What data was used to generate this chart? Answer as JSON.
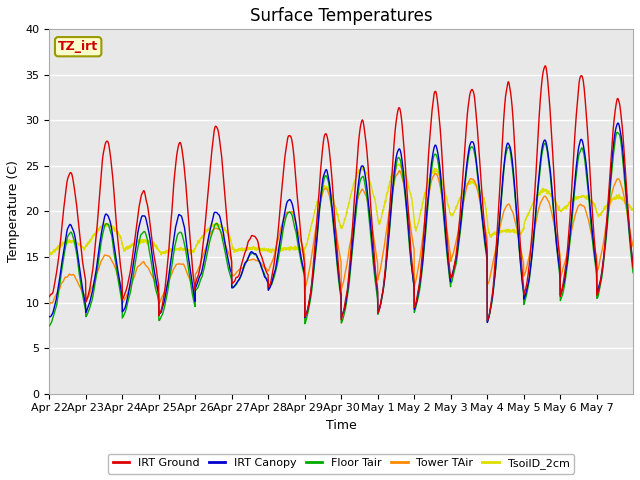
{
  "title": "Surface Temperatures",
  "xlabel": "Time",
  "ylabel": "Temperature (C)",
  "ylim": [
    0,
    40
  ],
  "x_tick_labels": [
    "Apr 22",
    "Apr 23",
    "Apr 24",
    "Apr 25",
    "Apr 26",
    "Apr 27",
    "Apr 28",
    "Apr 29",
    "Apr 30",
    "May 1",
    "May 2",
    "May 3",
    "May 4",
    "May 5",
    "May 6",
    "May 7"
  ],
  "annotation_text": "TZ_irt",
  "annotation_color": "#cc0000",
  "annotation_bg": "#ffffcc",
  "annotation_border": "#999900",
  "series_colors": [
    "#dd0000",
    "#0000cc",
    "#00aa00",
    "#ff8800",
    "#dddd00"
  ],
  "series_labels": [
    "IRT Ground",
    "IRT Canopy",
    "Floor Tair",
    "Tower TAir",
    "TsoilD_2cm"
  ],
  "plot_bg_color": "#e8e8e8",
  "grid_color": "#ffffff",
  "title_fontsize": 12,
  "axis_fontsize": 9,
  "tick_fontsize": 8
}
